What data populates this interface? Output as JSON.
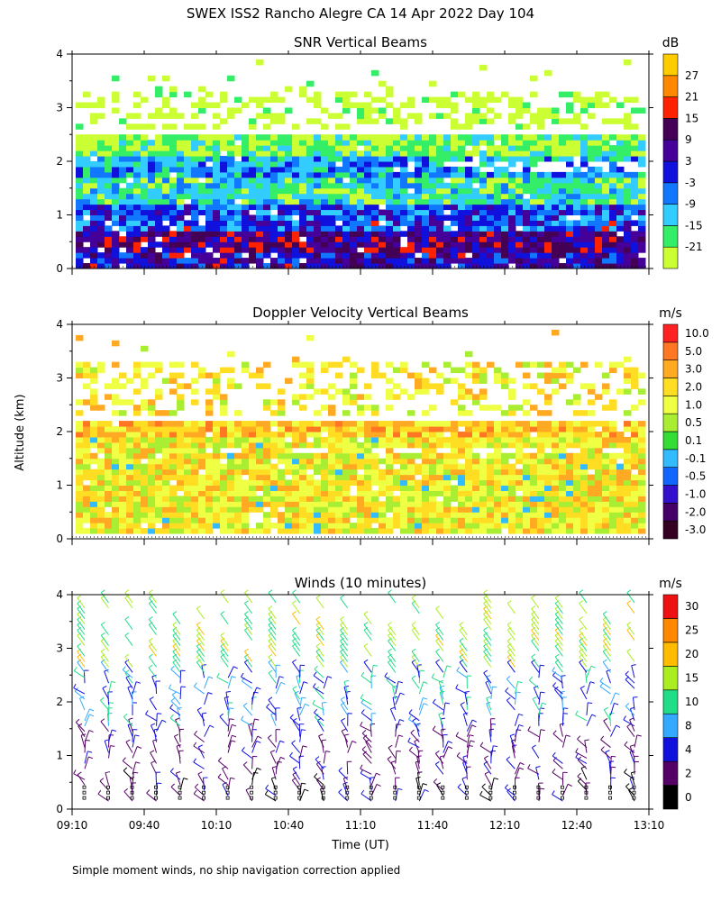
{
  "figure": {
    "title": "SWEX ISS2 Rancho Alegre CA  14 Apr 2022 Day 104",
    "ylabel": "Altitude (km)",
    "xlabel": "Time (UT)",
    "footnote": "Simple moment winds, no ship navigation correction applied"
  },
  "chart_data": [
    {
      "type": "heatmap",
      "title": "SNR Vertical Beams",
      "units": "dB",
      "ylim": [
        0,
        4
      ],
      "y_ticks": [
        "0",
        "1",
        "2",
        "3",
        "4"
      ],
      "colorbar_labels": [
        "-21",
        "-15",
        "-9",
        "-3",
        "3",
        "9",
        "15",
        "21",
        "27"
      ],
      "colors": [
        "#ccff33",
        "#33ee66",
        "#33ccff",
        "#1177ff",
        "#1111dd",
        "#440099",
        "#440055",
        "#ff2200",
        "#ff8800",
        "#ffcc00"
      ],
      "layers": [
        {
          "ybot": 0.05,
          "ytop": 0.35,
          "level": 5
        },
        {
          "ybot": 0.35,
          "ytop": 0.75,
          "level": 6
        },
        {
          "ybot": 0.75,
          "ytop": 1.25,
          "level": 4
        },
        {
          "ybot": 1.25,
          "ytop": 1.7,
          "level": 2
        },
        {
          "ybot": 1.7,
          "ytop": 2.1,
          "level": 3
        },
        {
          "ybot": 2.1,
          "ytop": 2.5,
          "level": 1
        },
        {
          "ybot": 2.6,
          "ytop": 3.3,
          "level": 0
        }
      ]
    },
    {
      "type": "heatmap",
      "title": "Doppler Velocity Vertical Beams",
      "units": "m/s",
      "ylim": [
        0,
        4
      ],
      "y_ticks": [
        "0",
        "1",
        "2",
        "3",
        "4"
      ],
      "colorbar_labels": [
        "10.0",
        "5.0",
        "3.0",
        "2.0",
        "1.0",
        "0.5",
        "0.1",
        "-0.1",
        "-0.5",
        "-1.0",
        "-2.0",
        "-3.0"
      ],
      "colors": [
        "#330022",
        "#440066",
        "#3311cc",
        "#1166ff",
        "#33bbff",
        "#33dd33",
        "#aaee33",
        "#eeff44",
        "#ffdd22",
        "#ffaa22",
        "#ff7722",
        "#ff2222"
      ],
      "layers": [
        {
          "ybot": 0.15,
          "ytop": 1.9,
          "level": 8
        },
        {
          "ybot": 1.9,
          "ytop": 2.2,
          "level": 9
        },
        {
          "ybot": 2.3,
          "ytop": 3.3,
          "level": 8
        }
      ]
    },
    {
      "type": "barbs",
      "title": "Winds (10 minutes)",
      "units": "m/s",
      "ylim": [
        0,
        4
      ],
      "y_ticks": [
        "0",
        "1",
        "2",
        "3",
        "4"
      ],
      "x_ticks": [
        "09:10",
        "09:40",
        "10:10",
        "10:40",
        "11:10",
        "11:40",
        "12:10",
        "12:40",
        "13:10"
      ],
      "colorbar_labels": [
        "0",
        "2",
        "4",
        "8",
        "10",
        "15",
        "20",
        "25",
        "30"
      ],
      "colors": [
        "#000000",
        "#550066",
        "#1111dd",
        "#33aaff",
        "#22dd88",
        "#aaee22",
        "#ffbb00",
        "#ff8800",
        "#ee1111"
      ]
    }
  ]
}
